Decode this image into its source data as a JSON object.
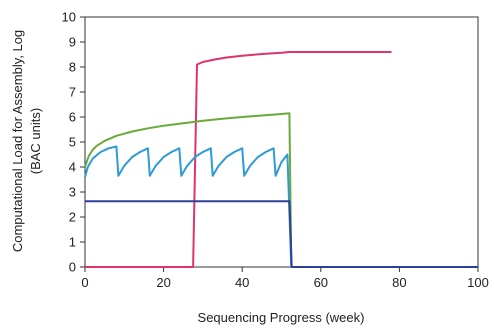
{
  "chart_data": {
    "type": "line",
    "title": "",
    "xlabel": "Sequencing Progress (week)",
    "ylabel_lines": [
      "Computational Load for Assembly, Log",
      "(BAC units)"
    ],
    "xlim": [
      0,
      100
    ],
    "ylim": [
      0,
      10
    ],
    "xticks": [
      "0",
      "20",
      "40",
      "60",
      "80",
      "100"
    ],
    "yticks": [
      "0",
      "1",
      "2",
      "3",
      "4",
      "5",
      "6",
      "7",
      "8",
      "9",
      "10"
    ],
    "grid": false,
    "legend": "none",
    "series": [
      {
        "color": "#e0336e",
        "x": [
          0,
          27.5,
          28.5,
          30,
          33,
          36,
          40,
          45,
          50,
          52,
          60,
          70,
          78
        ],
        "y": [
          0,
          0,
          8.1,
          8.2,
          8.3,
          8.38,
          8.45,
          8.52,
          8.57,
          8.6,
          8.6,
          8.6,
          8.6
        ]
      },
      {
        "color": "#6aaa3a",
        "x": [
          0,
          0.5,
          1,
          2,
          3,
          5,
          8,
          12,
          16,
          20,
          25,
          30,
          35,
          40,
          45,
          50,
          52,
          52.5,
          100
        ],
        "y": [
          4.0,
          4.25,
          4.45,
          4.7,
          4.85,
          5.05,
          5.25,
          5.42,
          5.55,
          5.65,
          5.75,
          5.85,
          5.93,
          6.0,
          6.06,
          6.12,
          6.15,
          0,
          0
        ]
      },
      {
        "color": "#2e9ad6",
        "x": [
          0,
          0.7,
          2,
          4,
          6,
          8,
          8.5,
          10,
          12,
          14,
          16,
          16.5,
          18,
          20,
          22,
          24,
          24.5,
          26,
          28,
          30,
          32,
          32.5,
          34,
          36,
          38,
          40,
          40.5,
          42,
          44,
          46,
          48,
          48.5,
          50,
          51.5,
          52.5,
          100
        ],
        "y": [
          3.6,
          4.0,
          4.35,
          4.6,
          4.75,
          4.82,
          3.65,
          4.05,
          4.4,
          4.6,
          4.75,
          3.65,
          4.05,
          4.4,
          4.6,
          4.75,
          3.65,
          4.05,
          4.4,
          4.6,
          4.75,
          3.65,
          4.05,
          4.4,
          4.6,
          4.75,
          3.65,
          4.05,
          4.4,
          4.6,
          4.75,
          3.65,
          4.2,
          4.5,
          0,
          0
        ]
      },
      {
        "color": "#2e3f9e",
        "x": [
          0,
          10,
          20,
          30,
          40,
          50,
          52,
          52.6,
          100
        ],
        "y": [
          2.63,
          2.63,
          2.63,
          2.63,
          2.63,
          2.63,
          2.63,
          0,
          0
        ]
      }
    ]
  }
}
